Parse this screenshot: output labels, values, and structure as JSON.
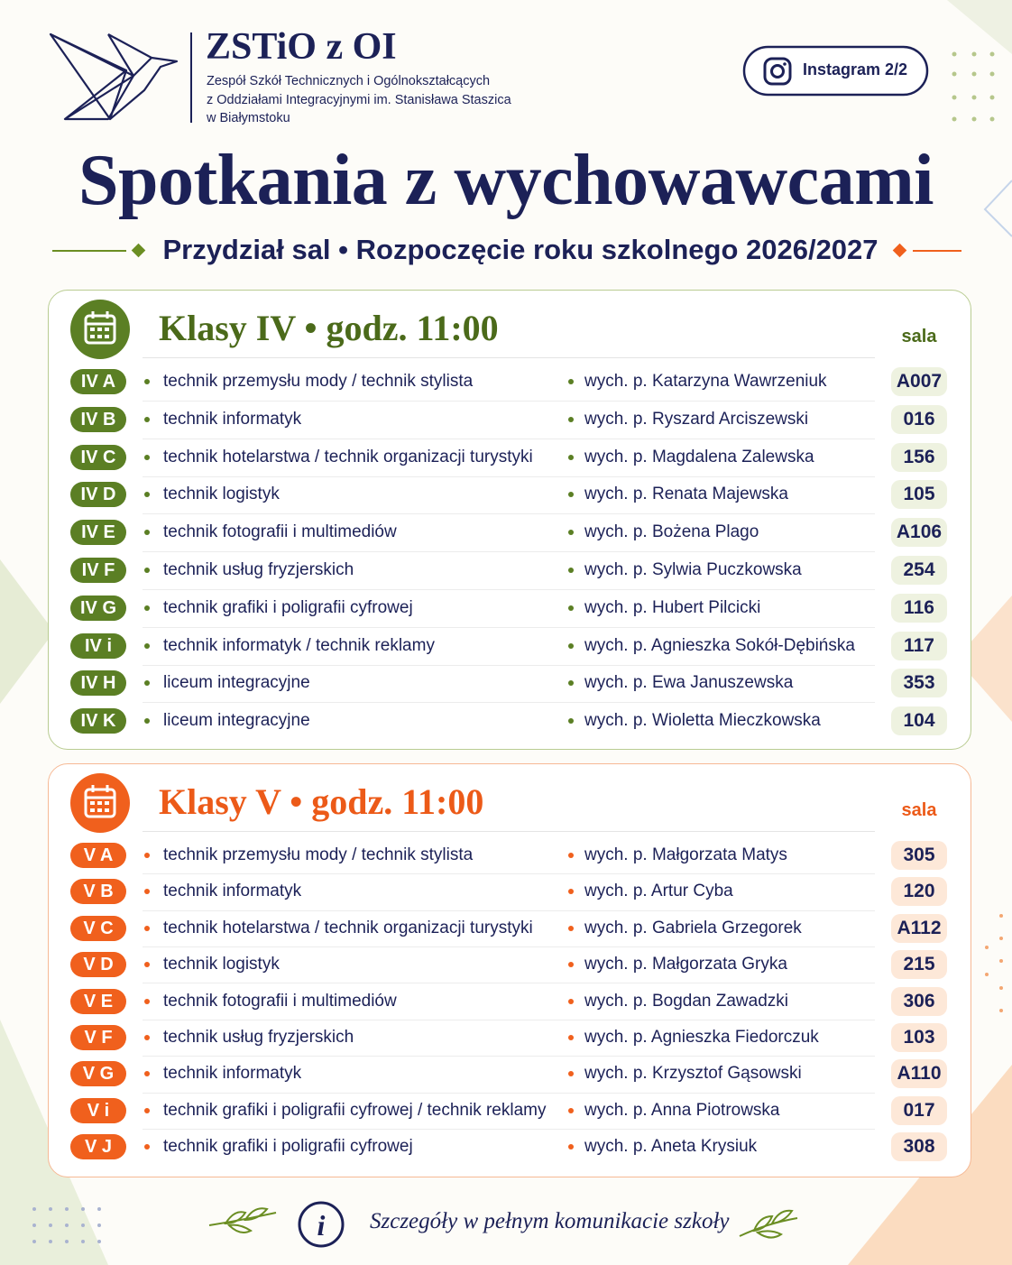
{
  "header": {
    "school_short": "ZSTiO z OI",
    "school_lines": [
      "Zespół Szkół Technicznych i Ogólnokształcących",
      "z Oddziałami Integracyjnymi im. Stanisława Staszica",
      "w Białymstoku"
    ],
    "instagram": "Instagram 2/2"
  },
  "title": "Spotkania z wychowawcami",
  "subtitle": "Przydział sal • Rozpoczęcie roku szkolnego 2026/2027",
  "sections": [
    {
      "heading": "Klasy IV • godz. 11:00",
      "room_header": "sala",
      "rows": [
        {
          "class": "IV A",
          "profile": "technik przemysłu mody / technik stylista",
          "teacher": "wych. p. Katarzyna Wawrzeniuk",
          "room": "A007"
        },
        {
          "class": "IV B",
          "profile": "technik informatyk",
          "teacher": "wych. p. Ryszard Arciszewski",
          "room": "016"
        },
        {
          "class": "IV C",
          "profile": "technik hotelarstwa / technik organizacji turystyki",
          "teacher": "wych. p. Magdalena Zalewska",
          "room": "156"
        },
        {
          "class": "IV D",
          "profile": "technik logistyk",
          "teacher": "wych. p. Renata Majewska",
          "room": "105"
        },
        {
          "class": "IV E",
          "profile": "technik fotografii i multimediów",
          "teacher": "wych. p. Bożena Plago",
          "room": "A106"
        },
        {
          "class": "IV F",
          "profile": "technik usług fryzjerskich",
          "teacher": "wych. p. Sylwia Puczkowska",
          "room": "254"
        },
        {
          "class": "IV G",
          "profile": "technik grafiki i poligrafii cyfrowej",
          "teacher": "wych. p. Hubert Pilcicki",
          "room": "116"
        },
        {
          "class": "IV i",
          "profile": "technik informatyk / technik reklamy",
          "teacher": "wych. p. Agnieszka Sokół-Dębińska",
          "room": "117"
        },
        {
          "class": "IV H",
          "profile": "liceum integracyjne",
          "teacher": "wych. p. Ewa Januszewska",
          "room": "353"
        },
        {
          "class": "IV K",
          "profile": "liceum integracyjne",
          "teacher": "wych. p. Wioletta Mieczkowska",
          "room": "104"
        }
      ]
    },
    {
      "heading": "Klasy V • godz. 11:00",
      "room_header": "sala",
      "rows": [
        {
          "class": "V A",
          "profile": "technik przemysłu mody / technik stylista",
          "teacher": "wych. p. Małgorzata Matys",
          "room": "305"
        },
        {
          "class": "V B",
          "profile": "technik informatyk",
          "teacher": "wych. p. Artur Cyba",
          "room": "120"
        },
        {
          "class": "V C",
          "profile": "technik hotelarstwa / technik organizacji turystyki",
          "teacher": "wych. p. Gabriela Grzegorek",
          "room": "A112"
        },
        {
          "class": "V D",
          "profile": "technik logistyk",
          "teacher": "wych. p. Małgorzata Gryka",
          "room": "215"
        },
        {
          "class": "V E",
          "profile": "technik fotografii i multimediów",
          "teacher": "wych. p. Bogdan Zawadzki",
          "room": "306"
        },
        {
          "class": "V F",
          "profile": "technik usług fryzjerskich",
          "teacher": "wych. p. Agnieszka Fiedorczuk",
          "room": "103"
        },
        {
          "class": "V G",
          "profile": "technik informatyk",
          "teacher": "wych. p. Krzysztof Gąsowski",
          "room": "A110"
        },
        {
          "class": "V i",
          "profile": "technik grafiki i poligrafii cyfrowej / technik reklamy",
          "teacher": "wych. p. Anna Piotrowska",
          "room": "017"
        },
        {
          "class": "V J",
          "profile": "technik grafiki i poligrafii cyfrowej",
          "teacher": "wych. p. Aneta Krysiuk",
          "room": "308"
        }
      ]
    }
  ],
  "footer": "Szczegóły w pełnym komunikacie szkoły"
}
